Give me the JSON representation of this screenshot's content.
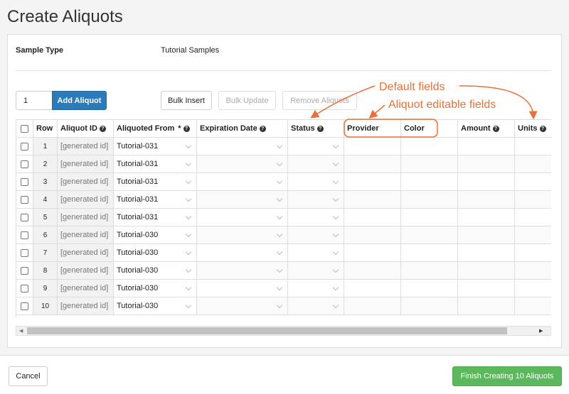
{
  "header": {
    "title": "Create Aliquots"
  },
  "sample_type": {
    "label": "Sample Type",
    "value": "Tutorial Samples"
  },
  "controls": {
    "quantity": "1",
    "add_button": "Add Aliquot",
    "bulk_insert": "Bulk Insert",
    "bulk_update": "Bulk Update",
    "remove": "Remove Aliquots"
  },
  "annotations": {
    "default_fields": "Default fields",
    "editable_fields": "Aliquot editable fields"
  },
  "table": {
    "columns": [
      "Row",
      "Aliquot ID",
      "Aliquoted From",
      "Expiration Date",
      "Status",
      "Provider",
      "Color",
      "Amount",
      "Units"
    ],
    "required_mark": "*",
    "rows": [
      [
        "1",
        "[generated id]",
        "Tutorial-031"
      ],
      [
        "2",
        "[generated id]",
        "Tutorial-031"
      ],
      [
        "3",
        "[generated id]",
        "Tutorial-031"
      ],
      [
        "4",
        "[generated id]",
        "Tutorial-031"
      ],
      [
        "5",
        "[generated id]",
        "Tutorial-031"
      ],
      [
        "6",
        "[generated id]",
        "Tutorial-030"
      ],
      [
        "7",
        "[generated id]",
        "Tutorial-030"
      ],
      [
        "8",
        "[generated id]",
        "Tutorial-030"
      ],
      [
        "9",
        "[generated id]",
        "Tutorial-030"
      ],
      [
        "10",
        "[generated id]",
        "Tutorial-030"
      ]
    ]
  },
  "footer": {
    "cancel": "Cancel",
    "finish": "Finish Creating 10 Aliquots"
  }
}
